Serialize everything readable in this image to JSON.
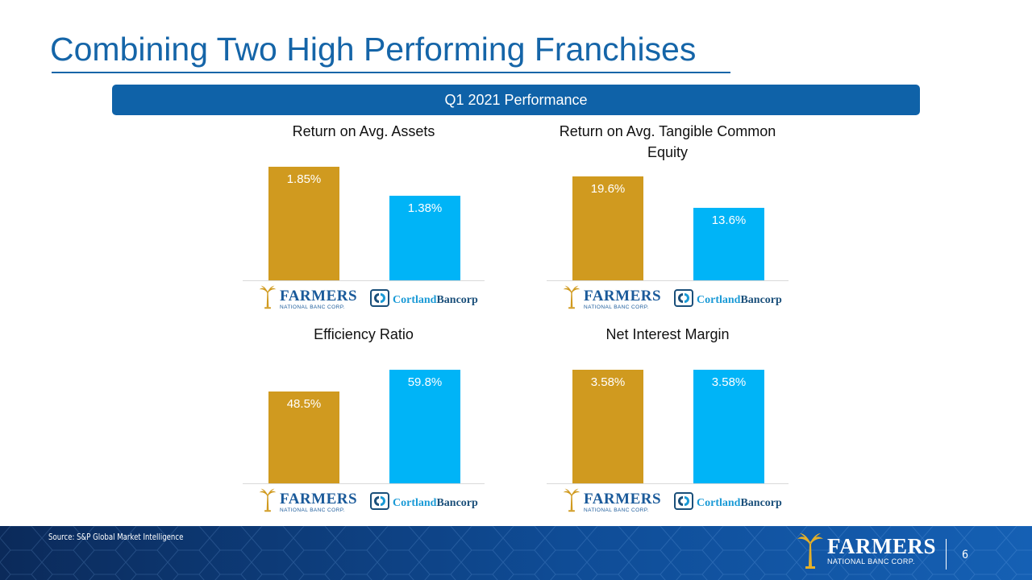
{
  "slide": {
    "title": "Combining Two High Performing Franchises",
    "banner": "Q1 2021 Performance",
    "source": "Source: S&P Global Market Intelligence",
    "page_number": "6"
  },
  "logos": {
    "farmers_name": "FARMERS",
    "farmers_sub": "NATIONAL BANC CORP.",
    "cortland_part1": "Cortland",
    "cortland_part2": "Bancorp"
  },
  "colors": {
    "farmers": "#d09a1f",
    "cortland": "#00b4f7",
    "brand_blue": "#1565a8"
  },
  "chart_data": [
    {
      "type": "bar",
      "title": "Return on Avg. Assets",
      "categories": [
        "Farmers National Banc Corp.",
        "Cortland Bancorp"
      ],
      "values": [
        1.85,
        1.38
      ],
      "labels": [
        "1.85%",
        "1.38%"
      ],
      "ylim": [
        0,
        2.0
      ]
    },
    {
      "type": "bar",
      "title": "Return on Avg. Tangible Common Equity",
      "categories": [
        "Farmers National Banc Corp.",
        "Cortland Bancorp"
      ],
      "values": [
        19.6,
        13.6
      ],
      "labels": [
        "19.6%",
        "13.6%"
      ],
      "ylim": [
        0,
        21.2
      ]
    },
    {
      "type": "bar",
      "title": "Efficiency Ratio",
      "categories": [
        "Farmers National Banc Corp.",
        "Cortland Bancorp"
      ],
      "values": [
        48.5,
        59.8
      ],
      "labels": [
        "48.5%",
        "59.8%"
      ],
      "ylim": [
        0,
        62.8
      ]
    },
    {
      "type": "bar",
      "title": "Net Interest Margin",
      "categories": [
        "Farmers National Banc Corp.",
        "Cortland Bancorp"
      ],
      "values": [
        3.58,
        3.58
      ],
      "labels": [
        "3.58%",
        "3.58%"
      ],
      "ylim": [
        0,
        3.76
      ]
    }
  ]
}
